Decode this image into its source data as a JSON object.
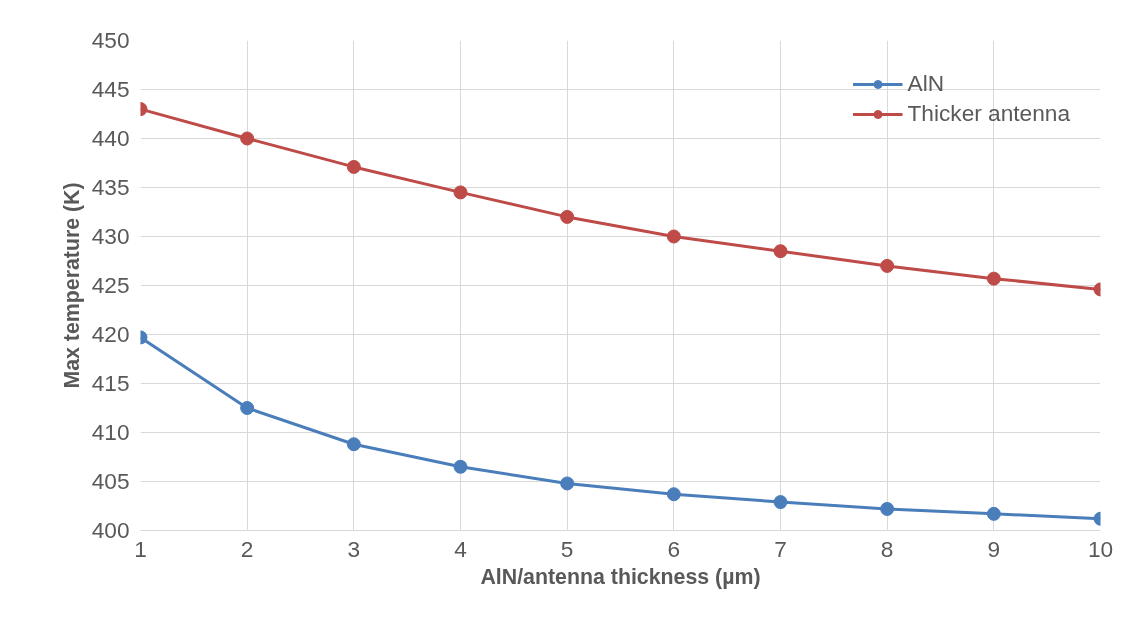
{
  "chart_data": {
    "type": "line",
    "xlabel": "AlN/antenna thickness (µm)",
    "ylabel": "Max temperature (K)",
    "x": [
      1,
      2,
      3,
      4,
      5,
      6,
      7,
      8,
      9,
      10
    ],
    "series": [
      {
        "name": "AlN",
        "color": "#4a7ebb",
        "values": [
          419.7,
          412.5,
          408.8,
          406.5,
          404.8,
          403.7,
          402.9,
          402.2,
          401.7,
          401.2
        ]
      },
      {
        "name": "Thicker antenna",
        "color": "#be4b48",
        "values": [
          443.0,
          440.0,
          437.1,
          434.5,
          432.0,
          430.0,
          428.5,
          427.0,
          425.7,
          424.6
        ]
      }
    ],
    "xlim": [
      1,
      10
    ],
    "xticks": [
      1,
      2,
      3,
      4,
      5,
      6,
      7,
      8,
      9,
      10
    ],
    "ylim": [
      400,
      450
    ],
    "yticks": [
      400,
      405,
      410,
      415,
      420,
      425,
      430,
      435,
      440,
      445,
      450
    ],
    "grid": true,
    "legend": "top right",
    "marker": "circle",
    "line_style": "solid"
  }
}
